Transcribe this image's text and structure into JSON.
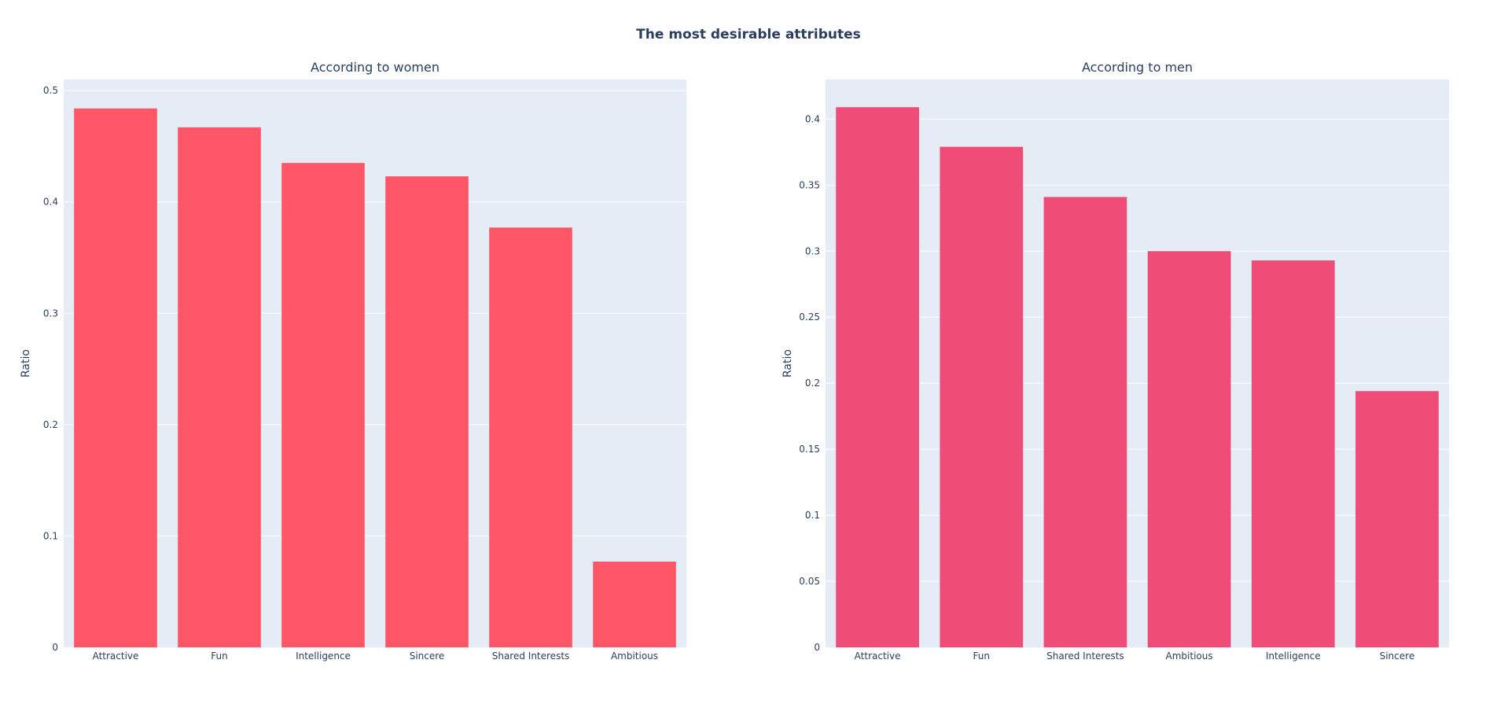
{
  "title": "The most desirable attributes",
  "colors": {
    "background": "#ffffff",
    "plot_bg": "#e5ecf6",
    "grid": "#ffffff",
    "text": "#2a3f5f"
  },
  "chart_data": [
    {
      "type": "bar",
      "title": "According to women",
      "xlabel": "",
      "ylabel": "Ratio",
      "categories": [
        "Attractive",
        "Fun",
        "Intelligence",
        "Sincere",
        "Shared Interests",
        "Ambitious"
      ],
      "values": [
        0.484,
        0.467,
        0.435,
        0.423,
        0.377,
        0.077
      ],
      "ylim": [
        0,
        0.51
      ],
      "yticks": [
        0,
        0.1,
        0.2,
        0.3,
        0.4,
        0.5
      ],
      "ytick_labels": [
        "0",
        "0.1",
        "0.2",
        "0.3",
        "0.4",
        "0.5"
      ],
      "color": "#fe5666",
      "grid": true
    },
    {
      "type": "bar",
      "title": "According to men",
      "xlabel": "",
      "ylabel": "Ratio",
      "categories": [
        "Attractive",
        "Fun",
        "Shared Interests",
        "Ambitious",
        "Intelligence",
        "Sincere"
      ],
      "values": [
        0.409,
        0.379,
        0.341,
        0.3,
        0.293,
        0.194
      ],
      "ylim": [
        0,
        0.43
      ],
      "yticks": [
        0,
        0.05,
        0.1,
        0.15,
        0.2,
        0.25,
        0.3,
        0.35,
        0.4
      ],
      "ytick_labels": [
        "0",
        "0.05",
        "0.1",
        "0.15",
        "0.2",
        "0.25",
        "0.3",
        "0.35",
        "0.4"
      ],
      "color": "#ef4c77",
      "grid": true
    }
  ]
}
